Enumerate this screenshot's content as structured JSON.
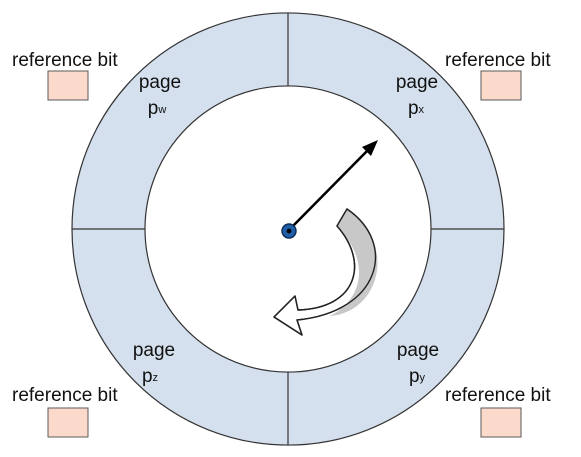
{
  "colors": {
    "ring_fill": "#d5e0ee",
    "ring_stroke": "#333333",
    "ref_box_fill": "#fbdacb",
    "ref_box_stroke": "#5a5a5a",
    "hand": "#000000",
    "hub_fill": "#1f5fa8",
    "curl_fill": "#c8c8c8"
  },
  "reference_bits": [
    {
      "label": "reference bit"
    },
    {
      "label": "reference bit"
    },
    {
      "label": "reference bit"
    },
    {
      "label": "reference bit"
    }
  ],
  "pages": [
    {
      "word": "page",
      "letter": "p",
      "subscript": "w"
    },
    {
      "word": "page",
      "letter": "p",
      "subscript": "x"
    },
    {
      "word": "page",
      "letter": "p",
      "subscript": "z"
    },
    {
      "word": "page",
      "letter": "p",
      "subscript": "y"
    }
  ],
  "icons": {
    "clock_hand": "arrow-icon",
    "rotation": "curved-arrow-icon"
  }
}
